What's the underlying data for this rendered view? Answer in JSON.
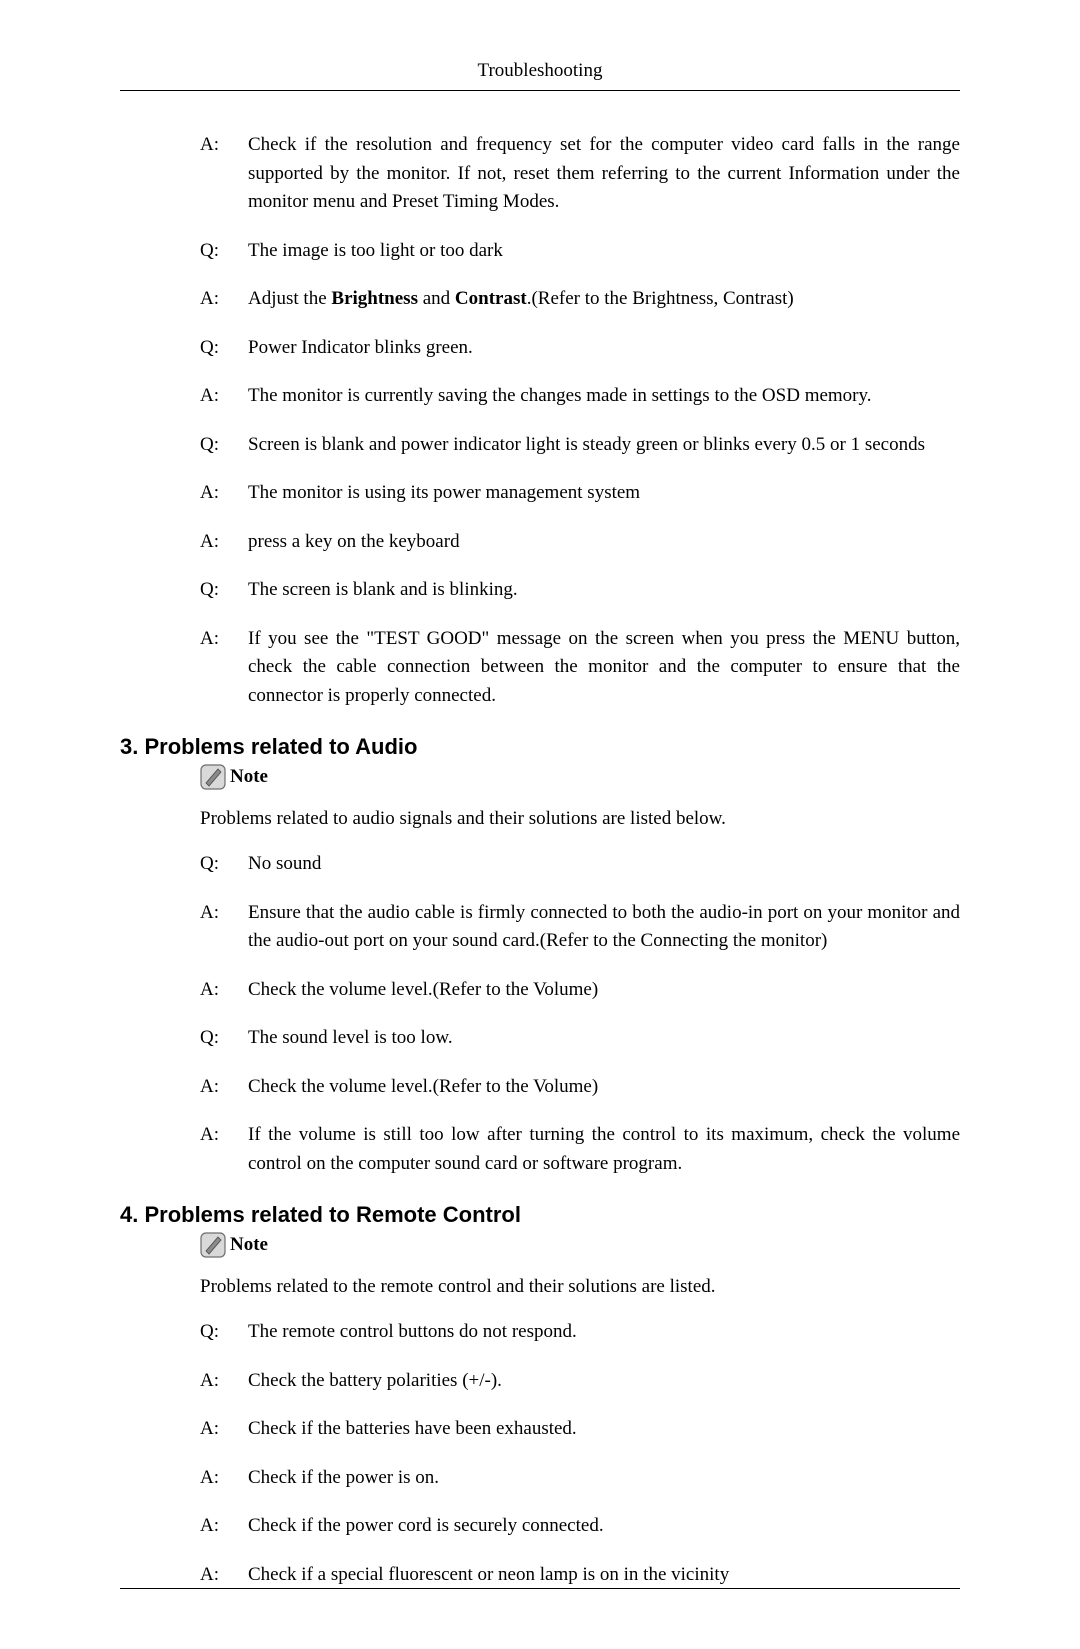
{
  "header": {
    "title": "Troubleshooting"
  },
  "colors": {
    "text": "#000000",
    "background": "#ffffff",
    "icon_fill": "#bfbfbf",
    "icon_stroke": "#4a4a4a"
  },
  "typography": {
    "body_font": "Times New Roman",
    "body_size_pt": 14,
    "heading_font": "Arial",
    "heading_size_pt": 17
  },
  "top_qa": [
    {
      "label": "A:",
      "text": "Check if the resolution and frequency set for the computer video card falls in the range supported by the monitor. If not, reset them referring to the current Information under the monitor menu and Preset Timing Modes."
    },
    {
      "label": "Q:",
      "text": "The image is too light or too dark"
    },
    {
      "label": "A:",
      "html": true,
      "text": "Adjust the <span class=\"bold\">Brightness</span> and <span class=\"bold\">Contrast</span>.(Refer to the Brightness, Contrast)"
    },
    {
      "label": "Q:",
      "text": "Power Indicator blinks green."
    },
    {
      "label": "A:",
      "text": "The monitor is currently saving the changes made in settings to the OSD memory."
    },
    {
      "label": "Q:",
      "text": "Screen is blank and power indicator light is steady green or blinks every 0.5 or 1 seconds"
    },
    {
      "label": "A:",
      "text": "The monitor is using its power management system"
    },
    {
      "label": "A:",
      "text": "press a key on the keyboard"
    },
    {
      "label": "Q:",
      "text": "The screen is blank and is blinking."
    },
    {
      "label": "A:",
      "text": "If you see the \"TEST GOOD\" message on the screen when you press the MENU button, check the cable connection between the monitor and the computer to ensure that the connector is properly connected."
    }
  ],
  "section3": {
    "heading": "3. Problems related to Audio",
    "note_label": "Note",
    "intro": "Problems related to audio signals and their solutions are listed below.",
    "qa": [
      {
        "label": "Q:",
        "text": "No sound"
      },
      {
        "label": "A:",
        "text": "Ensure that the audio cable is firmly connected to both the audio-in port on your monitor and the audio-out port on your sound card.(Refer to the Connecting the monitor)"
      },
      {
        "label": "A:",
        "text": "Check the volume level.(Refer to the Volume)"
      },
      {
        "label": "Q:",
        "text": "The sound level is too low."
      },
      {
        "label": "A:",
        "text": "Check the volume level.(Refer to the Volume)"
      },
      {
        "label": "A:",
        "text": "If the volume is still too low after turning the control to its maximum, check the volume control on the computer sound card or software program."
      }
    ]
  },
  "section4": {
    "heading": "4. Problems related to Remote Control",
    "note_label": "Note",
    "intro": "Problems related to the remote control and their solutions are listed.",
    "qa": [
      {
        "label": "Q:",
        "text": "The remote control buttons do not respond."
      },
      {
        "label": "A:",
        "text": "Check the battery polarities (+/-)."
      },
      {
        "label": "A:",
        "text": "Check if the batteries have been exhausted."
      },
      {
        "label": "A:",
        "text": "Check if the power is on."
      },
      {
        "label": "A:",
        "text": "Check if the power cord is securely connected."
      },
      {
        "label": "A:",
        "text": "Check if a special fluorescent or neon lamp is on in the vicinity"
      }
    ]
  }
}
